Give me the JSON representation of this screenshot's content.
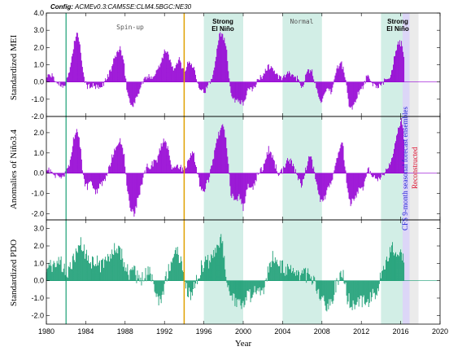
{
  "config_prefix": "Config:",
  "config_text": "ACMEv0.3:CAM5SE:CLM4.5BGC:NE30",
  "labels": {
    "spinup": "Spin-up",
    "normal": "Normal",
    "strong1_line1": "Strong",
    "strong1_line2": "El Niño",
    "strong2_line1": "Strong",
    "strong2_line2": "El Niño",
    "cfs": "CFS 9-month seasonal forecast ensembles",
    "reconstructed": "Reconstructed"
  },
  "colors": {
    "mei": "#9400d3",
    "nino": "#9400d3",
    "pdo": "#1a9e74",
    "shade": "#d2eee6",
    "cfs_band": "#dcd6f7",
    "recon_band": "#ebebeb",
    "cfs_text": "#1f1fd6",
    "recon_text": "#e0102f",
    "vline_teal": "#1a9e74",
    "vline_orange": "#e0a000"
  },
  "chart_data": {
    "type": "area",
    "title": "",
    "xlabel": "Year",
    "xlim": [
      1980,
      2020
    ],
    "xticks": [
      "1980",
      "1984",
      "1988",
      "1992",
      "1996",
      "2000",
      "2004",
      "2008",
      "2012",
      "2016",
      "2020"
    ],
    "shaded_periods": [
      [
        1996,
        2000
      ],
      [
        2004,
        2008
      ],
      [
        2014,
        2016.5
      ]
    ],
    "cfs_forecast_period": [
      2016.2,
      2017.8
    ],
    "reconstructed_period": [
      2016.9,
      2017.8
    ],
    "vertical_lines": [
      1982,
      1994
    ],
    "panels": [
      {
        "name": "mei",
        "ylabel": "Standardized MEI",
        "ylim": [
          -2.0,
          4.0
        ],
        "yticks": [
          "-2.0",
          "-1.0",
          "0.0",
          "1.0",
          "2.0",
          "3.0",
          "4.0"
        ],
        "points": [
          [
            1980,
            0.3
          ],
          [
            1980.5,
            0.4
          ],
          [
            1981,
            0.0
          ],
          [
            1981.5,
            -0.2
          ],
          [
            1982,
            -0.1
          ],
          [
            1982.4,
            0.8
          ],
          [
            1982.8,
            2.2
          ],
          [
            1983.1,
            2.9
          ],
          [
            1983.5,
            1.8
          ],
          [
            1983.8,
            0.2
          ],
          [
            1984.2,
            -0.3
          ],
          [
            1984.6,
            -0.2
          ],
          [
            1985,
            -0.3
          ],
          [
            1985.5,
            -0.4
          ],
          [
            1986,
            0.1
          ],
          [
            1986.5,
            0.6
          ],
          [
            1987,
            1.5
          ],
          [
            1987.5,
            2.0
          ],
          [
            1987.9,
            1.0
          ],
          [
            1988.2,
            -0.5
          ],
          [
            1988.6,
            -1.4
          ],
          [
            1989,
            -1.2
          ],
          [
            1989.5,
            -0.4
          ],
          [
            1990,
            0.2
          ],
          [
            1990.5,
            0.3
          ],
          [
            1991,
            0.4
          ],
          [
            1991.5,
            1.0
          ],
          [
            1992,
            1.8
          ],
          [
            1992.4,
            1.6
          ],
          [
            1992.8,
            0.8
          ],
          [
            1993.2,
            0.9
          ],
          [
            1993.5,
            1.3
          ],
          [
            1994,
            0.6
          ],
          [
            1994.5,
            1.2
          ],
          [
            1995,
            0.8
          ],
          [
            1995.5,
            -0.2
          ],
          [
            1996,
            -0.6
          ],
          [
            1996.4,
            -0.3
          ],
          [
            1996.9,
            0.3
          ],
          [
            1997.3,
            1.8
          ],
          [
            1997.6,
            2.9
          ],
          [
            1997.9,
            2.7
          ],
          [
            1998.3,
            2.1
          ],
          [
            1998.7,
            -0.5
          ],
          [
            1999.1,
            -1.1
          ],
          [
            1999.5,
            -1.0
          ],
          [
            2000,
            -1.3
          ],
          [
            2000.5,
            -0.5
          ],
          [
            2001,
            -0.4
          ],
          [
            2001.5,
            0.1
          ],
          [
            2002,
            0.4
          ],
          [
            2002.5,
            0.9
          ],
          [
            2003,
            0.8
          ],
          [
            2003.5,
            0.3
          ],
          [
            2004,
            0.2
          ],
          [
            2004.5,
            0.5
          ],
          [
            2005,
            0.4
          ],
          [
            2005.5,
            0.2
          ],
          [
            2006,
            -0.3
          ],
          [
            2006.5,
            0.6
          ],
          [
            2007,
            0.6
          ],
          [
            2007.5,
            -0.5
          ],
          [
            2008,
            -1.2
          ],
          [
            2008.5,
            -0.5
          ],
          [
            2009,
            -0.6
          ],
          [
            2009.5,
            0.8
          ],
          [
            2010,
            1.1
          ],
          [
            2010.4,
            0.2
          ],
          [
            2010.8,
            -1.6
          ],
          [
            2011.3,
            -1.3
          ],
          [
            2011.7,
            -0.6
          ],
          [
            2012.2,
            -0.3
          ],
          [
            2012.6,
            0.4
          ],
          [
            2013,
            -0.1
          ],
          [
            2013.5,
            -0.2
          ],
          [
            2014,
            -0.3
          ],
          [
            2014.5,
            0.2
          ],
          [
            2015,
            0.4
          ],
          [
            2015.4,
            1.5
          ],
          [
            2015.8,
            2.3
          ],
          [
            2016.1,
            2.2
          ],
          [
            2016.4,
            1.2
          ]
        ]
      },
      {
        "name": "nino",
        "ylabel": "Anomalies of Niño3.4",
        "ylim": [
          -2.3,
          2.8
        ],
        "yticks": [
          "-2.0",
          "-1.0",
          "0.0",
          "1.0",
          "2.0"
        ],
        "points": [
          [
            1980,
            0.3
          ],
          [
            1980.5,
            0.1
          ],
          [
            1981,
            -0.2
          ],
          [
            1981.5,
            -0.3
          ],
          [
            1982,
            0.0
          ],
          [
            1982.4,
            0.6
          ],
          [
            1982.8,
            1.8
          ],
          [
            1983.1,
            2.3
          ],
          [
            1983.5,
            1.1
          ],
          [
            1983.8,
            -0.4
          ],
          [
            1984.2,
            -0.7
          ],
          [
            1984.6,
            -0.4
          ],
          [
            1985,
            -1.0
          ],
          [
            1985.5,
            -0.6
          ],
          [
            1986,
            -0.4
          ],
          [
            1986.5,
            0.5
          ],
          [
            1987,
            1.3
          ],
          [
            1987.5,
            1.6
          ],
          [
            1987.9,
            1.0
          ],
          [
            1988.2,
            -0.8
          ],
          [
            1988.6,
            -1.8
          ],
          [
            1988.9,
            -2.0
          ],
          [
            1989.3,
            -1.3
          ],
          [
            1989.8,
            -0.3
          ],
          [
            1990.2,
            0.3
          ],
          [
            1990.7,
            0.4
          ],
          [
            1991.2,
            0.6
          ],
          [
            1991.7,
            1.4
          ],
          [
            1992,
            1.7
          ],
          [
            1992.4,
            1.2
          ],
          [
            1992.8,
            0.2
          ],
          [
            1993.2,
            0.3
          ],
          [
            1993.6,
            0.3
          ],
          [
            1994,
            0.1
          ],
          [
            1994.5,
            0.8
          ],
          [
            1994.9,
            1.1
          ],
          [
            1995.3,
            0.2
          ],
          [
            1995.7,
            -0.9
          ],
          [
            1996.1,
            -0.8
          ],
          [
            1996.5,
            -0.3
          ],
          [
            1997,
            0.8
          ],
          [
            1997.5,
            1.9
          ],
          [
            1997.9,
            2.4
          ],
          [
            1998.3,
            1.5
          ],
          [
            1998.7,
            -0.9
          ],
          [
            1999.1,
            -1.4
          ],
          [
            1999.6,
            -1.1
          ],
          [
            2000,
            -1.7
          ],
          [
            2000.5,
            -0.6
          ],
          [
            2001,
            -0.7
          ],
          [
            2001.5,
            0.0
          ],
          [
            2002,
            0.2
          ],
          [
            2002.6,
            1.2
          ],
          [
            2003,
            0.8
          ],
          [
            2003.5,
            0.0
          ],
          [
            2004,
            0.1
          ],
          [
            2004.6,
            0.7
          ],
          [
            2005,
            0.5
          ],
          [
            2005.5,
            -0.2
          ],
          [
            2006,
            -0.6
          ],
          [
            2006.5,
            0.5
          ],
          [
            2006.9,
            0.9
          ],
          [
            2007.3,
            -0.2
          ],
          [
            2007.9,
            -1.4
          ],
          [
            2008.3,
            -1.2
          ],
          [
            2008.8,
            -0.6
          ],
          [
            2009.3,
            0.2
          ],
          [
            2009.8,
            1.2
          ],
          [
            2010.1,
            1.5
          ],
          [
            2010.5,
            -0.4
          ],
          [
            2010.9,
            -1.5
          ],
          [
            2011.3,
            -1.2
          ],
          [
            2011.8,
            -0.8
          ],
          [
            2012.2,
            -0.7
          ],
          [
            2012.7,
            0.2
          ],
          [
            2013.1,
            -0.2
          ],
          [
            2013.6,
            -0.3
          ],
          [
            2014,
            -0.2
          ],
          [
            2014.6,
            0.2
          ],
          [
            2015,
            0.5
          ],
          [
            2015.4,
            1.3
          ],
          [
            2015.8,
            2.2
          ],
          [
            2016.1,
            2.6
          ],
          [
            2016.4,
            1.5
          ]
        ]
      },
      {
        "name": "pdo",
        "ylabel": "Standardized PDO",
        "ylim": [
          -2.5,
          3.5
        ],
        "yticks": [
          "-2.0",
          "-1.0",
          "0.0",
          "1.0",
          "2.0",
          "3.0"
        ],
        "points": [
          [
            1980,
            0.6
          ],
          [
            1980.5,
            0.9
          ],
          [
            1981,
            1.2
          ],
          [
            1981.5,
            1.0
          ],
          [
            1982,
            0.4
          ],
          [
            1982.5,
            0.8
          ],
          [
            1983,
            1.6
          ],
          [
            1983.5,
            2.3
          ],
          [
            1984,
            1.4
          ],
          [
            1984.5,
            1.0
          ],
          [
            1985,
            1.2
          ],
          [
            1985.5,
            0.7
          ],
          [
            1986,
            1.2
          ],
          [
            1986.5,
            1.5
          ],
          [
            1987,
            2.0
          ],
          [
            1987.5,
            1.8
          ],
          [
            1988,
            0.8
          ],
          [
            1988.5,
            0.4
          ],
          [
            1989,
            0.5
          ],
          [
            1989.5,
            -0.2
          ],
          [
            1990,
            0.3
          ],
          [
            1990.5,
            0.5
          ],
          [
            1991,
            -0.5
          ],
          [
            1991.4,
            -1.4
          ],
          [
            1991.8,
            -0.8
          ],
          [
            1992.3,
            0.5
          ],
          [
            1992.8,
            1.4
          ],
          [
            1993.3,
            1.6
          ],
          [
            1993.8,
            0.8
          ],
          [
            1994.3,
            -0.6
          ],
          [
            1994.8,
            -0.9
          ],
          [
            1995.3,
            0.2
          ],
          [
            1995.8,
            0.8
          ],
          [
            1996.3,
            1.1
          ],
          [
            1996.8,
            1.2
          ],
          [
            1997.3,
            1.9
          ],
          [
            1997.8,
            2.3
          ],
          [
            1998.2,
            0.7
          ],
          [
            1998.6,
            -0.8
          ],
          [
            1999.1,
            -1.0
          ],
          [
            1999.6,
            -1.3
          ],
          [
            2000.1,
            -1.1
          ],
          [
            2000.6,
            -0.9
          ],
          [
            2001.1,
            -0.6
          ],
          [
            2001.6,
            -0.7
          ],
          [
            2002.1,
            -0.4
          ],
          [
            2002.6,
            0.6
          ],
          [
            2003,
            1.4
          ],
          [
            2003.4,
            1.0
          ],
          [
            2003.8,
            0.8
          ],
          [
            2004.3,
            0.7
          ],
          [
            2004.8,
            0.6
          ],
          [
            2005.3,
            0.7
          ],
          [
            2005.8,
            0.2
          ],
          [
            2006.3,
            0.3
          ],
          [
            2006.8,
            0.4
          ],
          [
            2007.3,
            -0.2
          ],
          [
            2007.8,
            -0.8
          ],
          [
            2008.3,
            -1.3
          ],
          [
            2008.8,
            -1.5
          ],
          [
            2009.3,
            -0.5
          ],
          [
            2009.8,
            0.3
          ],
          [
            2010.2,
            0.4
          ],
          [
            2010.6,
            -1.1
          ],
          [
            2011.1,
            -1.3
          ],
          [
            2011.6,
            -1.4
          ],
          [
            2012.1,
            -1.2
          ],
          [
            2012.6,
            -1.4
          ],
          [
            2013.1,
            -0.8
          ],
          [
            2013.6,
            -0.6
          ],
          [
            2014.1,
            0.6
          ],
          [
            2014.6,
            1.3
          ],
          [
            2015.1,
            1.9
          ],
          [
            2015.6,
            1.4
          ],
          [
            2016.1,
            1.4
          ],
          [
            2016.4,
            1.1
          ]
        ]
      }
    ]
  }
}
